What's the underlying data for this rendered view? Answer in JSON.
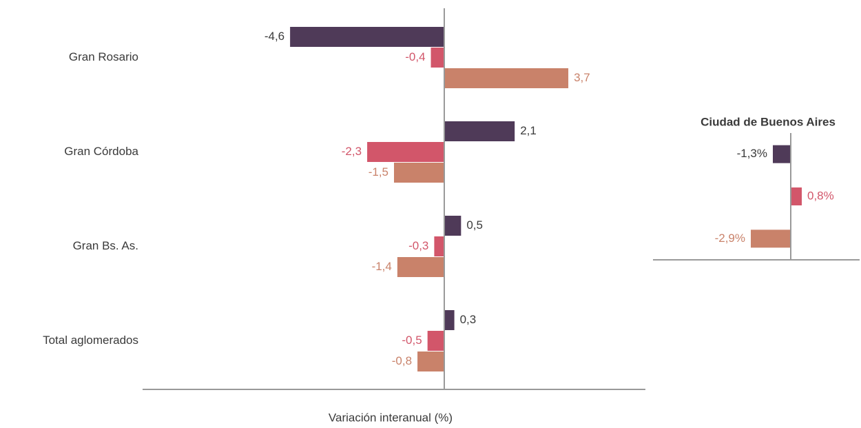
{
  "chart_data": [
    {
      "type": "hbar",
      "categories": [
        "Gran Rosario",
        "Gran Córdoba",
        "Gran Bs. As.",
        "Total aglomerados"
      ],
      "series": [
        {
          "color": "#4f3a58",
          "label_color": "#3a3a3a",
          "values": [
            -4.6,
            2.1,
            0.5,
            0.3
          ],
          "value_labels": [
            "-4,6",
            "2,1",
            "0,5",
            "0,3"
          ]
        },
        {
          "color": "#d2566a",
          "label_color": "#d2566a",
          "values": [
            -0.4,
            -2.3,
            -0.3,
            -0.5
          ],
          "value_labels": [
            "-0,4",
            "-2,3",
            "-0,3",
            "-0,5"
          ]
        },
        {
          "color": "#c9826a",
          "label_color": "#c9826a",
          "values": [
            3.7,
            -1.5,
            -1.4,
            -0.8
          ],
          "value_labels": [
            "3,7",
            "-1,5",
            "-1,4",
            "-0,8"
          ]
        }
      ],
      "xlim": [
        -9,
        6
      ],
      "x_label": "Variación interanual (%)"
    },
    {
      "type": "hbar-single",
      "title": "Ciudad de Buenos Aires",
      "values": [
        -1.3,
        0.8,
        -2.9
      ],
      "value_labels": [
        "-1,3%",
        "0,8%",
        "-2,9%"
      ],
      "colors": [
        "#4f3a58",
        "#d2566a",
        "#c9826a"
      ],
      "label_colors": [
        "#3a3a3a",
        "#d2566a",
        "#c9826a"
      ],
      "xlim": [
        -10,
        5
      ]
    }
  ]
}
